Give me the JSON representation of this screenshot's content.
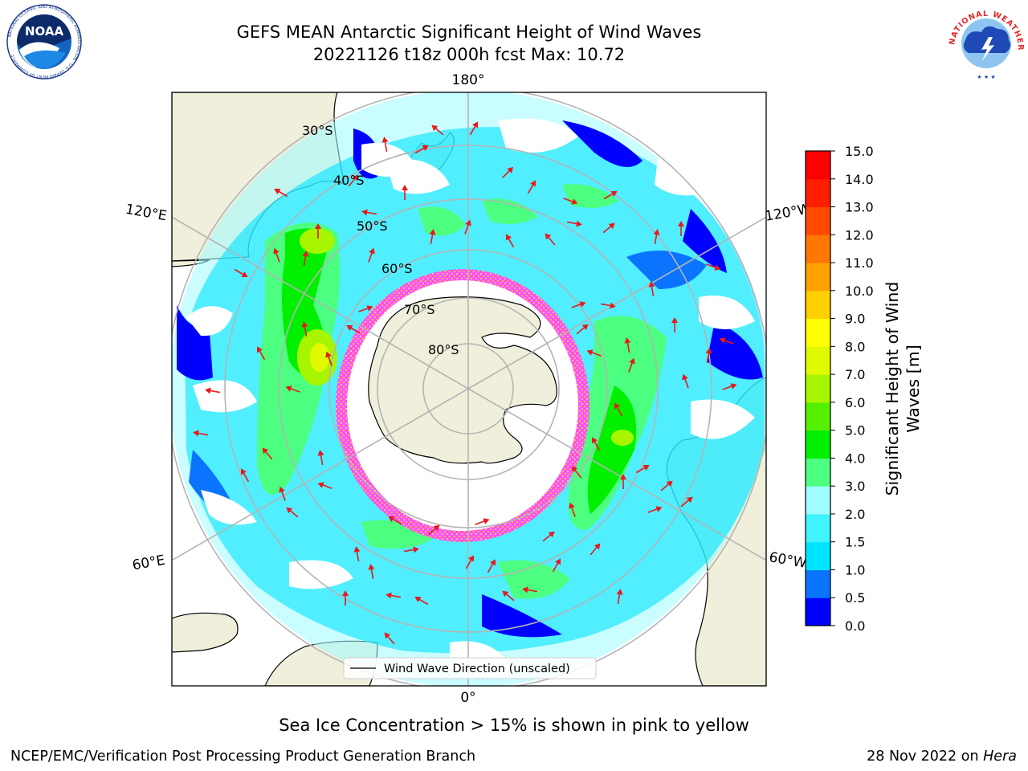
{
  "header": {
    "title_line1": "GEFS MEAN Antarctic Significant Height of Wind Waves",
    "title_line2": "20221126 t18z 000h fcst   Max: 10.72"
  },
  "logos": {
    "left": {
      "name": "noaa-logo",
      "text": "NOAA",
      "ring_text": "NATIONAL OCEANIC AND ATMOSPHERIC ADMINISTRATION · U.S. DEPARTMENT OF COMMERCE"
    },
    "right": {
      "name": "nws-logo",
      "ring_text": "NATIONAL WEATHER SERVICE"
    }
  },
  "map": {
    "longitude_labels": {
      "top": "180°",
      "upper_left": "120°E",
      "upper_right": "120°W",
      "lower_left": "60°E",
      "lower_right": "60°W",
      "bottom": "0°"
    },
    "latitude_labels": [
      "30°S",
      "40°S",
      "50°S",
      "60°S",
      "70°S",
      "80°S"
    ],
    "legend_label": "Wind Wave Direction (unscaled)"
  },
  "colorbar": {
    "label_line1": "Significant Height of Wind",
    "label_line2": "Waves [m]",
    "ticks": [
      "0.0",
      "0.5",
      "1.0",
      "1.5",
      "2.0",
      "3.0",
      "4.0",
      "5.0",
      "6.0",
      "7.0",
      "8.0",
      "9.0",
      "10.0",
      "11.0",
      "12.0",
      "13.0",
      "14.0",
      "15.0"
    ],
    "colors": [
      "#0000ff",
      "#0a74ff",
      "#00e5ff",
      "#3ff3ff",
      "#9ffcff",
      "#4dff80",
      "#00f000",
      "#55f000",
      "#a8f500",
      "#e0fa00",
      "#ffff00",
      "#ffd000",
      "#ffa200",
      "#ff7600",
      "#ff4a00",
      "#ff1e00",
      "#ff0000"
    ]
  },
  "annotations": {
    "sea_ice_note": "Sea Ice Concentration > 15% is shown in pink to yellow"
  },
  "footer": {
    "left": "NCEP/EMC/Verification Post Processing Product Generation Branch",
    "date": "28 Nov 2022 on",
    "host": "Hera"
  }
}
